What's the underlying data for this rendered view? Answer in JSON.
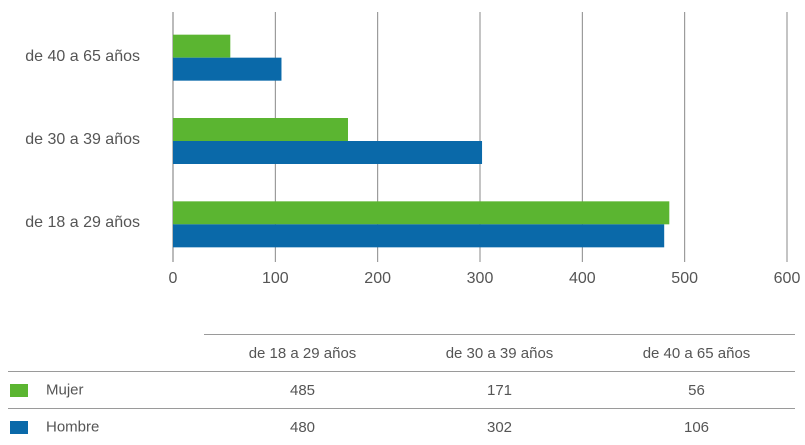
{
  "chart_data": {
    "type": "bar",
    "orientation": "horizontal",
    "categories": [
      "de 18 a 29 años",
      "de 30 a 39 años",
      "de 40 a 65 años"
    ],
    "series": [
      {
        "name": "Mujer",
        "values": [
          485,
          171,
          56
        ],
        "color": "#5bb531"
      },
      {
        "name": "Hombre",
        "values": [
          480,
          302,
          106
        ],
        "color": "#0a69a9"
      }
    ],
    "xlim": [
      0,
      600
    ],
    "xticks": [
      "0",
      "100",
      "200",
      "300",
      "400",
      "500",
      "600"
    ],
    "grid": true,
    "legend": "data-table below chart"
  },
  "table": {
    "headers": [
      "de 18 a 29 años",
      "de 30 a 39 años",
      "de 40 a 65 años"
    ],
    "rows": [
      {
        "label": "Mujer",
        "color": "#5bb531",
        "values": [
          "485",
          "171",
          "56"
        ]
      },
      {
        "label": "Hombre",
        "color": "#0a69a9",
        "values": [
          "480",
          "302",
          "106"
        ]
      }
    ]
  }
}
